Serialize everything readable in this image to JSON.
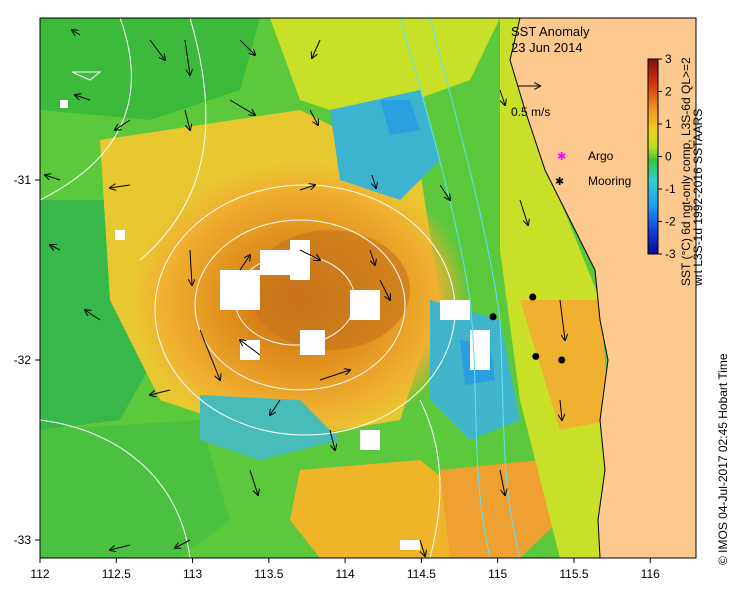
{
  "title": {
    "line1": "SST Anomaly",
    "line2": "23 Jun 2014"
  },
  "vector_scale_label": "0.5 m/s",
  "legend": [
    {
      "label": "Argo",
      "symbol": "magenta-star",
      "color": "#ff00ff"
    },
    {
      "label": "Mooring",
      "symbol": "black-star",
      "color": "#000000"
    }
  ],
  "colorbar": {
    "ticks": [
      "3",
      "2",
      "1",
      "0",
      "-1",
      "-2",
      "-3"
    ],
    "values": [
      3,
      2,
      1,
      0,
      -1,
      -2,
      -3
    ],
    "label_line1": "SST (°C) 6d ngt-only comp, L3S-6d  QL>=2",
    "label_line2": "wrt L3S-1d 1992-2016 SSTAARS",
    "stops": [
      "#0a0a8c",
      "#1040e0",
      "#20a0f0",
      "#30d0d0",
      "#20b040",
      "#60d020",
      "#d0e020",
      "#f0c020",
      "#f09020",
      "#e04010",
      "#801010"
    ]
  },
  "credit": "© IMOS 04-Jul-2017 02:45 Hobart Time",
  "axes": {
    "x_ticks": [
      "112",
      "112.5",
      "113",
      "113.5",
      "114",
      "114.5",
      "115",
      "115.5",
      "116"
    ],
    "x_values": [
      112,
      112.5,
      113,
      113.5,
      114,
      114.5,
      115,
      115.5,
      116
    ],
    "y_ticks": [
      "-31",
      "-32",
      "-33"
    ],
    "y_values": [
      -31,
      -32,
      -33
    ],
    "x_range": [
      112,
      116.3
    ],
    "y_range": [
      -33.1,
      -30.1
    ]
  },
  "moorings": [
    {
      "lon": 115.23,
      "lat": -31.65
    },
    {
      "lon": 114.97,
      "lat": -31.76
    },
    {
      "lon": 115.25,
      "lat": -31.98
    },
    {
      "lon": 115.42,
      "lat": -32.0
    }
  ],
  "land_color": "#fdc98f"
}
